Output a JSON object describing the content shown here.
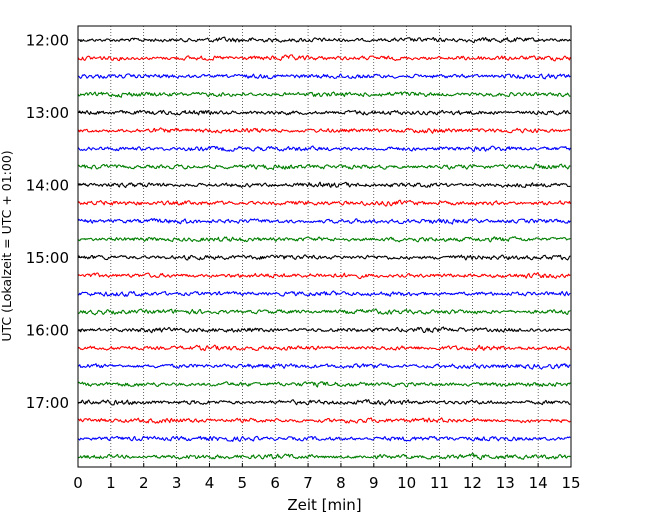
{
  "chart_data": {
    "type": "line",
    "title": "",
    "xlabel": "Zeit  [min]",
    "ylabel": "UTC (Lokalzeit = UTC + 01:00)",
    "xlim": [
      0,
      15
    ],
    "x_ticks": [
      "0",
      "1",
      "2",
      "3",
      "4",
      "5",
      "6",
      "7",
      "8",
      "9",
      "10",
      "11",
      "12",
      "13",
      "14",
      "15"
    ],
    "y_ticks": [
      "12:00",
      "13:00",
      "14:00",
      "15:00",
      "16:00",
      "17:00"
    ],
    "traces_per_hour": 4,
    "trace_count": 24,
    "start_hour": "12:00",
    "trace_minutes": 15,
    "trace_colors": [
      "#000000",
      "#ff0000",
      "#0000ff",
      "#007f00"
    ],
    "grid": "vertical dotted"
  }
}
